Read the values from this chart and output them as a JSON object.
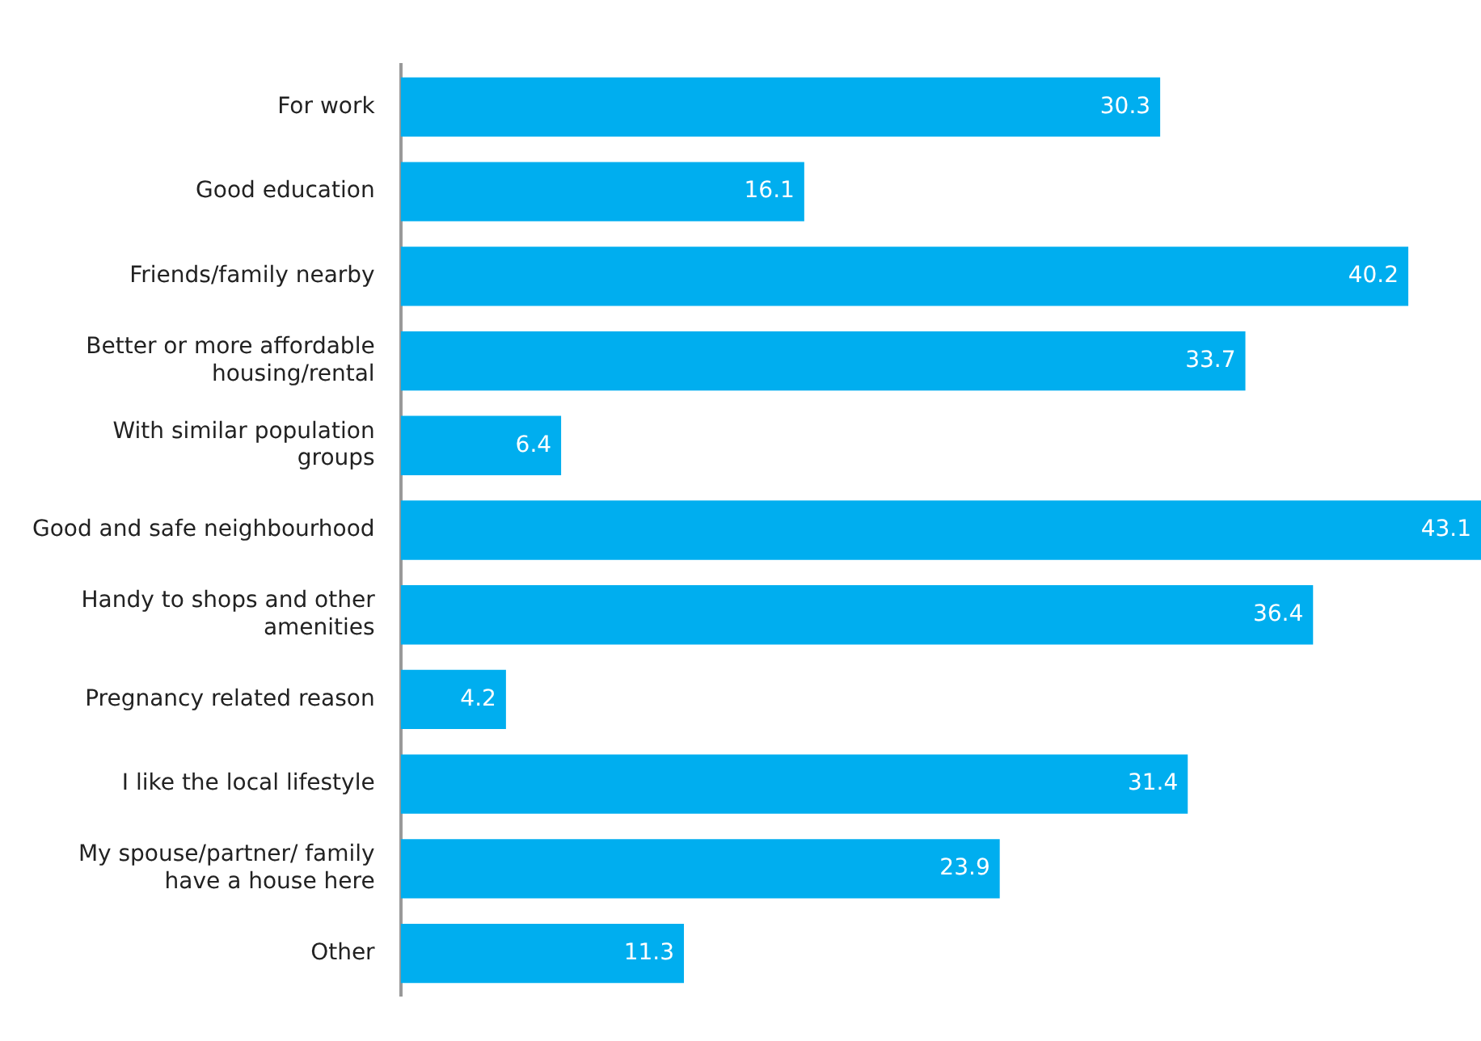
{
  "chart_data": {
    "type": "bar",
    "orientation": "horizontal",
    "categories": [
      "For work",
      "Good education",
      "Friends/family nearby",
      "Better or more affordable housing/rental",
      "With similar population groups",
      "Good and safe neighbourhood",
      "Handy to shops and other amenities",
      "Pregnancy related reason",
      "I like the local lifestyle",
      "My spouse/partner/ family have a house here",
      "Other"
    ],
    "values": [
      30.3,
      16.1,
      40.2,
      33.7,
      6.4,
      43.1,
      36.4,
      4.2,
      31.4,
      23.9,
      11.3
    ],
    "color": "#00aeef",
    "data_labels": true,
    "grid": false,
    "legend": false
  }
}
